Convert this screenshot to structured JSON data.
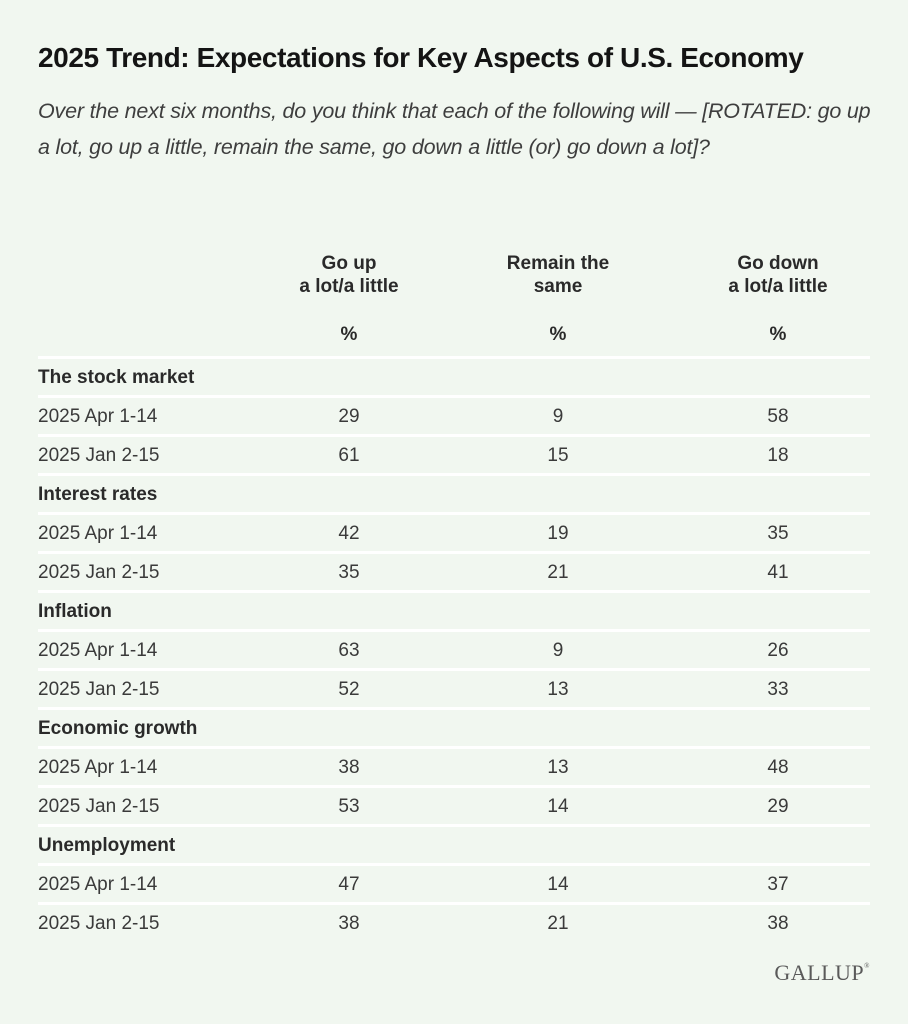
{
  "title": "2025 Trend: Expectations for Key Aspects of U.S. Economy",
  "subtitle": "Over the next six months, do you think that each of the following will — [ROTATED: go up a lot, go up a little, remain the same, go down a little (or) go down a lot]?",
  "brand": {
    "name": "GALLUP",
    "mark": "®"
  },
  "colors": {
    "background": "#f1f7f0",
    "divider": "#ffffff",
    "text": "#1e1e1e"
  },
  "columns": [
    {
      "label_line1": "Go up",
      "label_line2": "a lot/a little",
      "unit": "%"
    },
    {
      "label_line1": "Remain the",
      "label_line2": "same",
      "unit": "%"
    },
    {
      "label_line1": "Go down",
      "label_line2": "a lot/a little",
      "unit": "%"
    }
  ],
  "chart_data": {
    "type": "table",
    "title": "2025 Trend: Expectations for Key Aspects of U.S. Economy",
    "subtitle": "Over the next six months, do you think that each of the following will — [ROTATED: go up a lot, go up a little, remain the same, go down a little (or) go down a lot]?",
    "columns": [
      "Go up a lot/a little (%)",
      "Remain the same (%)",
      "Go down a lot/a little (%)"
    ],
    "groups": [
      {
        "name": "The stock market",
        "rows": [
          {
            "period": "2025 Apr 1-14",
            "values": [
              29,
              9,
              58
            ]
          },
          {
            "period": "2025 Jan 2-15",
            "values": [
              61,
              15,
              18
            ]
          }
        ]
      },
      {
        "name": "Interest rates",
        "rows": [
          {
            "period": "2025 Apr 1-14",
            "values": [
              42,
              19,
              35
            ]
          },
          {
            "period": "2025 Jan 2-15",
            "values": [
              35,
              21,
              41
            ]
          }
        ]
      },
      {
        "name": "Inflation",
        "rows": [
          {
            "period": "2025 Apr 1-14",
            "values": [
              63,
              9,
              26
            ]
          },
          {
            "period": "2025 Jan 2-15",
            "values": [
              52,
              13,
              33
            ]
          }
        ]
      },
      {
        "name": "Economic growth",
        "rows": [
          {
            "period": "2025 Apr 1-14",
            "values": [
              38,
              13,
              48
            ]
          },
          {
            "period": "2025 Jan 2-15",
            "values": [
              53,
              14,
              29
            ]
          }
        ]
      },
      {
        "name": "Unemployment",
        "rows": [
          {
            "period": "2025 Apr 1-14",
            "values": [
              47,
              14,
              37
            ]
          },
          {
            "period": "2025 Jan 2-15",
            "values": [
              38,
              21,
              38
            ]
          }
        ]
      }
    ]
  }
}
